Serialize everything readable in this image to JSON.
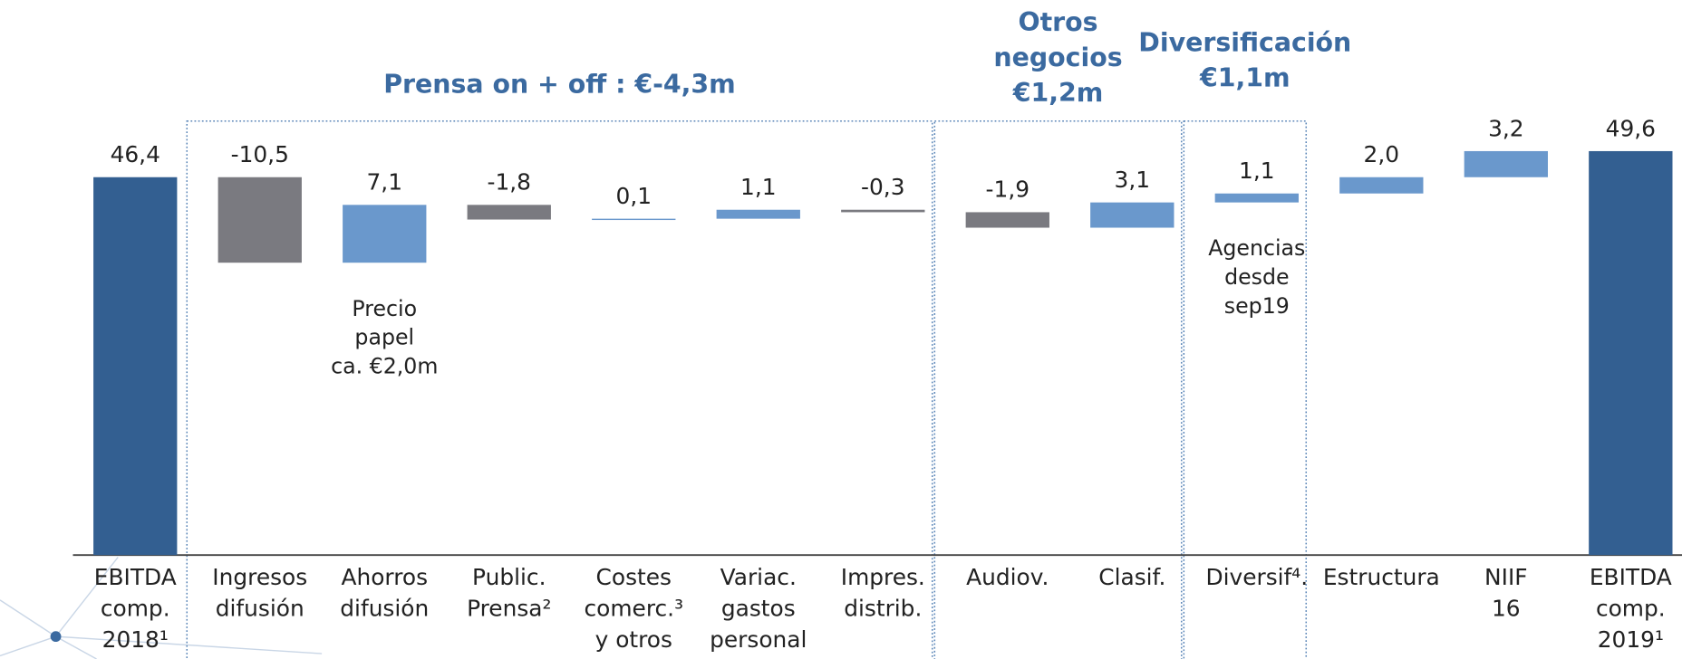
{
  "chart_data": {
    "type": "waterfall",
    "categories": [
      [
        "EBITDA",
        "comp.",
        "2018¹"
      ],
      [
        "Ingresos",
        "difusión"
      ],
      [
        "Ahorros",
        "difusión"
      ],
      [
        "Public.",
        "Prensa²"
      ],
      [
        "Costes",
        "comerc.³",
        "y otros"
      ],
      [
        "Variac.",
        "gastos",
        "personal"
      ],
      [
        "Impres.",
        "distrib."
      ],
      [
        "Audiov."
      ],
      [
        "Clasif."
      ],
      [
        "Diversif⁴."
      ],
      [
        "Estructura"
      ],
      [
        "NIIF",
        "16"
      ],
      [
        "EBITDA",
        "comp.",
        "2019¹"
      ]
    ],
    "values": [
      46.4,
      -10.5,
      7.1,
      -1.8,
      0.1,
      1.1,
      -0.3,
      -1.9,
      3.1,
      1.1,
      2.0,
      3.2,
      49.6
    ],
    "value_labels": [
      "46,4",
      "-10,5",
      "7,1",
      "-1,8",
      "0,1",
      "1,1",
      "-0,3",
      "-1,9",
      "3,1",
      "1,1",
      "2,0",
      "3,2",
      "49,6"
    ],
    "is_total": [
      true,
      false,
      false,
      false,
      false,
      false,
      false,
      false,
      false,
      false,
      false,
      false,
      true
    ],
    "notes": [
      null,
      null,
      [
        "Precio",
        "papel",
        "ca. €2,0m"
      ],
      null,
      null,
      null,
      null,
      null,
      null,
      [
        "Agencias",
        "desde",
        "sep19"
      ],
      null,
      null,
      null
    ],
    "groups": [
      {
        "title": [
          "Prensa on + off : €-4,3m"
        ]
      },
      {
        "title": [
          "Otros",
          "negocios",
          "€1,2m"
        ]
      },
      {
        "title": [
          "Diversificación",
          "€1,1m"
        ]
      }
    ],
    "colors": {
      "total": "#335f91",
      "increase": "#6a98cc",
      "decrease": "#7a7a80"
    },
    "ylim": [
      0,
      60
    ]
  }
}
